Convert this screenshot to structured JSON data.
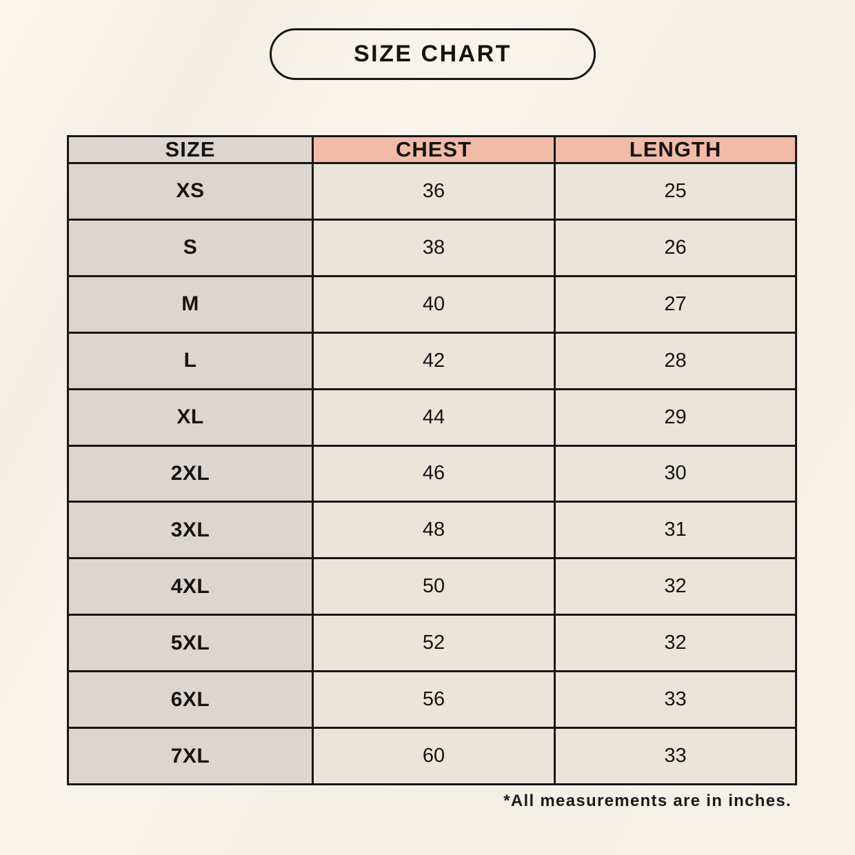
{
  "page": {
    "title": "SIZE CHART",
    "footnote": "*All measurements are in inches."
  },
  "colors": {
    "background": "#f6f2e9",
    "header_accent_pink": "#f2bba8",
    "size_column_gray": "#dcd5d0",
    "data_cell_cream": "#ebe4da",
    "table_border": "#161616",
    "text": "#141414"
  },
  "chart_data": {
    "type": "table",
    "title": "SIZE CHART",
    "columns": [
      "SIZE",
      "CHEST",
      "LENGTH"
    ],
    "rows": [
      [
        "XS",
        "36",
        "25"
      ],
      [
        "S",
        "38",
        "26"
      ],
      [
        "M",
        "40",
        "27"
      ],
      [
        "L",
        "42",
        "28"
      ],
      [
        "XL",
        "44",
        "29"
      ],
      [
        "2XL",
        "46",
        "30"
      ],
      [
        "3XL",
        "48",
        "31"
      ],
      [
        "4XL",
        "50",
        "32"
      ],
      [
        "5XL",
        "52",
        "32"
      ],
      [
        "6XL",
        "56",
        "33"
      ],
      [
        "7XL",
        "60",
        "33"
      ]
    ],
    "units": "inches",
    "note": "*All measurements are in inches.",
    "layout": {
      "header_row_backgrounds": [
        "gray",
        "pink",
        "pink"
      ],
      "size_column_background": "gray",
      "value_columns_background": "cream"
    }
  }
}
